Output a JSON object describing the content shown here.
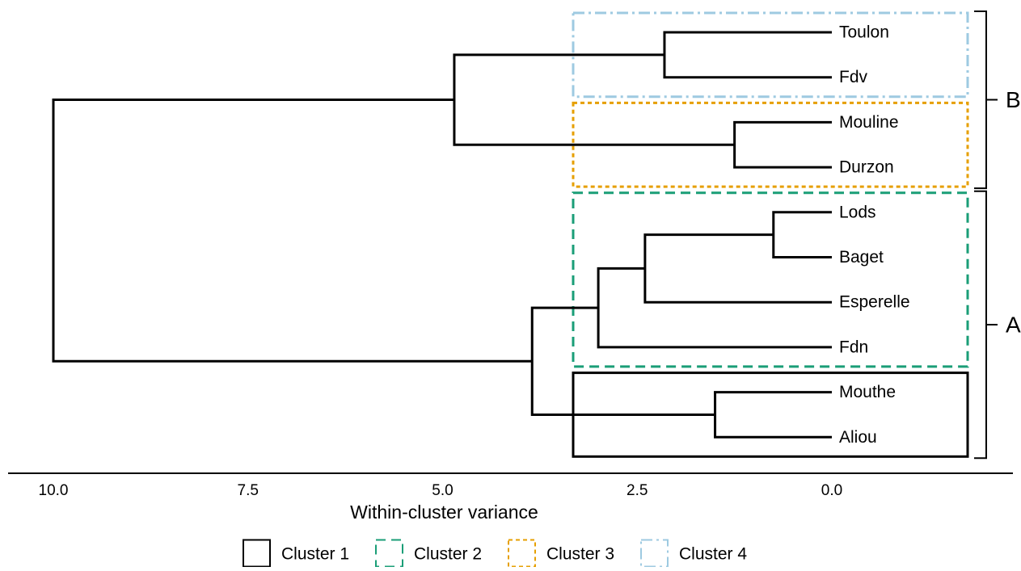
{
  "chart_data": {
    "type": "dendrogram",
    "xlabel": "Within-cluster variance",
    "x_axis": {
      "reversed": true,
      "range": [
        10.0,
        0.0
      ],
      "ticks": [
        10.0,
        7.5,
        5.0,
        2.5,
        0.0
      ],
      "tick_labels": [
        "10.0",
        "7.5",
        "5.0",
        "2.5",
        "0.0"
      ]
    },
    "leaves": [
      "Toulon",
      "Fdv",
      "Mouline",
      "Durzon",
      "Lods",
      "Baget",
      "Esperelle",
      "Fdn",
      "Mouthe",
      "Aliou"
    ],
    "merges": [
      {
        "left": "Lods",
        "right": "Baget",
        "height": 0.75
      },
      {
        "left": "Mouline",
        "right": "Durzon",
        "height": 1.25
      },
      {
        "left": "Mouthe",
        "right": "Aliou",
        "height": 1.5
      },
      {
        "left": "Toulon",
        "right": "Fdv",
        "height": 2.15
      },
      {
        "left": "Lods+Baget",
        "right": "Esperelle",
        "height": 2.4
      },
      {
        "left": "Lods+Baget+Esperelle",
        "right": "Fdn",
        "height": 3.0
      },
      {
        "left": "Lods+Baget+Esperelle+Fdn",
        "right": "Mouthe+Aliou",
        "height": 3.85
      },
      {
        "left": "Toulon+Fdv",
        "right": "Mouline+Durzon",
        "height": 4.85
      },
      {
        "left": "Toulon+Fdv+Mouline+Durzon",
        "right": "Lods+Baget+Esperelle+Fdn+Mouthe+Aliou",
        "height": 10.0
      }
    ],
    "clusters": [
      {
        "name": "Cluster 1",
        "members": [
          "Mouthe",
          "Aliou"
        ],
        "color": "#000000",
        "line_style": "solid"
      },
      {
        "name": "Cluster 2",
        "members": [
          "Lods",
          "Baget",
          "Esperelle",
          "Fdn"
        ],
        "color": "#1a9e77",
        "line_style": "dashed"
      },
      {
        "name": "Cluster 3",
        "members": [
          "Mouline",
          "Durzon"
        ],
        "color": "#e69f00",
        "line_style": "dotted"
      },
      {
        "name": "Cluster 4",
        "members": [
          "Toulon",
          "Fdv"
        ],
        "color": "#9ecae1",
        "line_style": "dashdot"
      }
    ],
    "groups": [
      {
        "label": "B",
        "members": [
          "Toulon",
          "Fdv",
          "Mouline",
          "Durzon"
        ]
      },
      {
        "label": "A",
        "members": [
          "Lods",
          "Baget",
          "Esperelle",
          "Fdn",
          "Mouthe",
          "Aliou"
        ]
      }
    ],
    "legend": {
      "position": "bottom"
    }
  }
}
